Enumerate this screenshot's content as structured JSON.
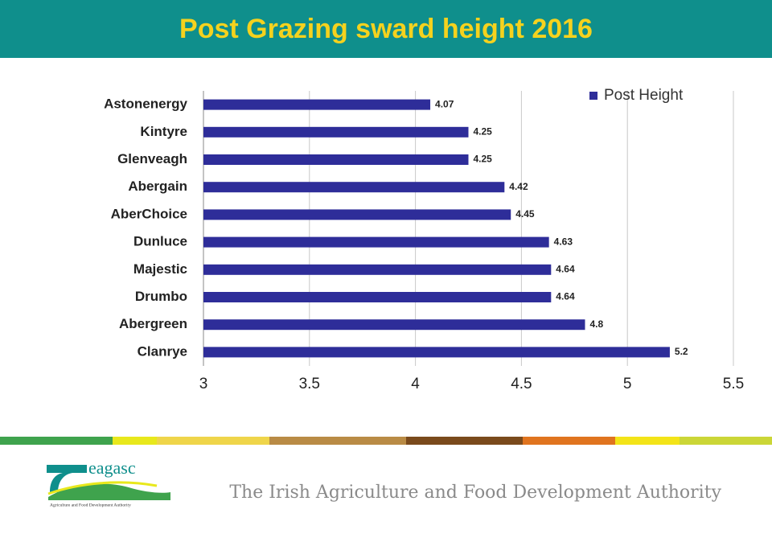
{
  "chart_data": {
    "type": "bar",
    "orientation": "horizontal",
    "title": "Post Grazing sward height 2016",
    "categories": [
      "Astonenergy",
      "Kintyre",
      "Glenveagh",
      "Abergain",
      "AberChoice",
      "Dunluce",
      "Majestic",
      "Drumbo",
      "Abergreen",
      "Clanrye"
    ],
    "series": [
      {
        "name": "Post Height",
        "color": "#2e2d99",
        "values": [
          4.07,
          4.25,
          4.25,
          4.42,
          4.45,
          4.63,
          4.64,
          4.64,
          4.8,
          5.2
        ]
      }
    ],
    "xlim": [
      3,
      5.5
    ],
    "xticks": [
      3,
      3.5,
      4,
      4.5,
      5,
      5.5
    ],
    "grid": true,
    "legend": "top-right"
  },
  "footer": {
    "logo": "eagasc",
    "logo_tagline": "Agriculture and Food Development Authority",
    "authority": "The Irish Agriculture and Food Development Authority"
  }
}
